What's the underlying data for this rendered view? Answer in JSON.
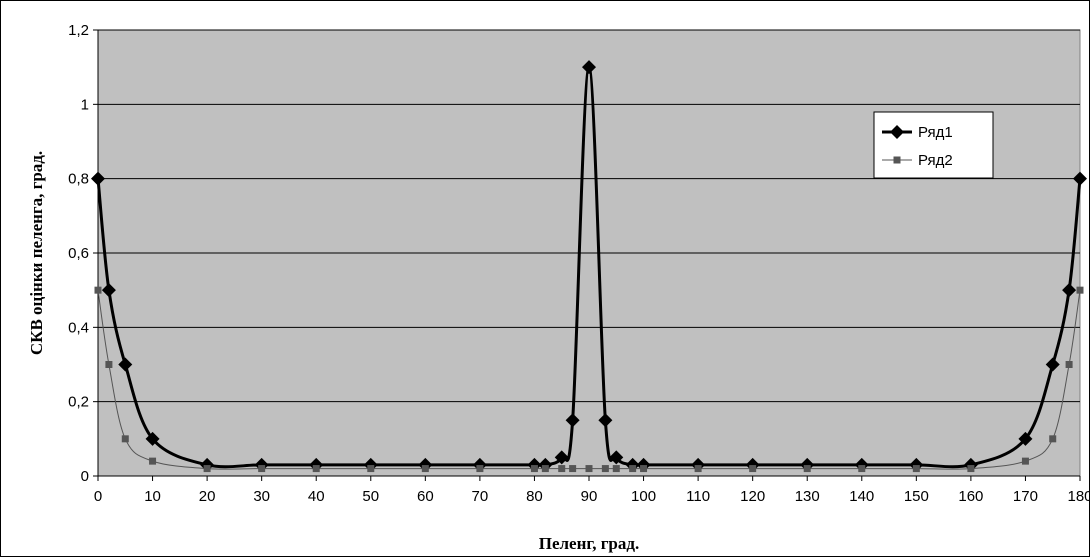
{
  "chart_data": {
    "type": "line",
    "title": "",
    "xlabel": "Пеленг, град.",
    "ylabel": "СКВ оцінки пеленга, град.",
    "xlim": [
      0,
      180
    ],
    "ylim": [
      0,
      1.2
    ],
    "x_ticks": [
      "0",
      "10",
      "20",
      "30",
      "40",
      "50",
      "60",
      "70",
      "80",
      "90",
      "100",
      "110",
      "120",
      "130",
      "140",
      "150",
      "160",
      "170",
      "180"
    ],
    "y_ticks": [
      "0",
      "0,2",
      "0,4",
      "0,6",
      "0,8",
      "1",
      "1,2"
    ],
    "grid": "horizontal",
    "legend_position": "top-right",
    "plot_background": "#c0c0c0",
    "series": [
      {
        "name": "Ряд1",
        "color": "#000000",
        "marker": "diamond",
        "x": [
          0,
          2,
          5,
          10,
          20,
          30,
          40,
          50,
          60,
          70,
          80,
          82,
          85,
          87,
          90,
          93,
          95,
          98,
          100,
          110,
          120,
          130,
          140,
          150,
          160,
          170,
          175,
          178,
          180
        ],
        "values": [
          0.8,
          0.5,
          0.3,
          0.1,
          0.03,
          0.03,
          0.03,
          0.03,
          0.03,
          0.03,
          0.03,
          0.03,
          0.05,
          0.15,
          1.1,
          0.15,
          0.05,
          0.03,
          0.03,
          0.03,
          0.03,
          0.03,
          0.03,
          0.03,
          0.03,
          0.1,
          0.3,
          0.5,
          0.8
        ]
      },
      {
        "name": "Ряд2",
        "color": "#555555",
        "marker": "square",
        "x": [
          0,
          2,
          5,
          10,
          20,
          30,
          40,
          50,
          60,
          70,
          80,
          82,
          85,
          87,
          90,
          93,
          95,
          98,
          100,
          110,
          120,
          130,
          140,
          150,
          160,
          170,
          175,
          178,
          180
        ],
        "values": [
          0.5,
          0.3,
          0.1,
          0.04,
          0.02,
          0.02,
          0.02,
          0.02,
          0.02,
          0.02,
          0.02,
          0.02,
          0.02,
          0.02,
          0.02,
          0.02,
          0.02,
          0.02,
          0.02,
          0.02,
          0.02,
          0.02,
          0.02,
          0.02,
          0.02,
          0.04,
          0.1,
          0.3,
          0.5
        ]
      }
    ]
  }
}
